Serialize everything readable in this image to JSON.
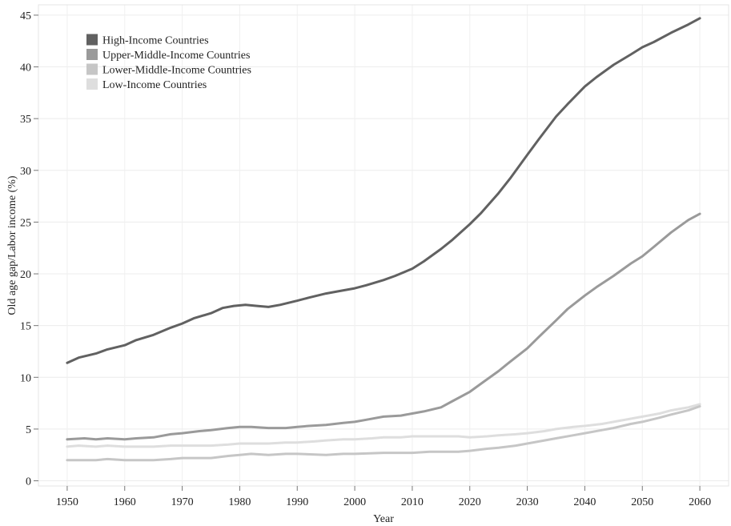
{
  "chart_data": {
    "type": "line",
    "title": "",
    "xlabel": "Year",
    "ylabel": "Old age gap/Labor income (%)",
    "xlim": [
      1945,
      2065
    ],
    "ylim": [
      -0.5,
      46
    ],
    "xticks": [
      1950,
      1960,
      1970,
      1980,
      1990,
      2000,
      2010,
      2020,
      2030,
      2040,
      2050,
      2060
    ],
    "yticks": [
      0,
      5,
      10,
      15,
      20,
      25,
      30,
      35,
      40,
      45
    ],
    "grid": true,
    "legend_position": "top-left",
    "series": [
      {
        "name": "High-Income Countries",
        "color": "#616161",
        "points": [
          [
            1950,
            11.4
          ],
          [
            1952,
            11.9
          ],
          [
            1955,
            12.3
          ],
          [
            1957,
            12.7
          ],
          [
            1960,
            13.1
          ],
          [
            1962,
            13.6
          ],
          [
            1965,
            14.1
          ],
          [
            1968,
            14.8
          ],
          [
            1970,
            15.2
          ],
          [
            1972,
            15.7
          ],
          [
            1975,
            16.2
          ],
          [
            1977,
            16.7
          ],
          [
            1979,
            16.9
          ],
          [
            1981,
            17.0
          ],
          [
            1983,
            16.9
          ],
          [
            1985,
            16.8
          ],
          [
            1987,
            17.0
          ],
          [
            1990,
            17.4
          ],
          [
            1992,
            17.7
          ],
          [
            1995,
            18.1
          ],
          [
            1997,
            18.3
          ],
          [
            2000,
            18.6
          ],
          [
            2002,
            18.9
          ],
          [
            2005,
            19.4
          ],
          [
            2007,
            19.8
          ],
          [
            2010,
            20.5
          ],
          [
            2012,
            21.2
          ],
          [
            2015,
            22.4
          ],
          [
            2017,
            23.3
          ],
          [
            2020,
            24.8
          ],
          [
            2022,
            25.9
          ],
          [
            2025,
            27.8
          ],
          [
            2027,
            29.2
          ],
          [
            2030,
            31.5
          ],
          [
            2032,
            33.0
          ],
          [
            2035,
            35.2
          ],
          [
            2037,
            36.4
          ],
          [
            2040,
            38.1
          ],
          [
            2042,
            39.0
          ],
          [
            2045,
            40.2
          ],
          [
            2048,
            41.2
          ],
          [
            2050,
            41.9
          ],
          [
            2052,
            42.4
          ],
          [
            2055,
            43.3
          ],
          [
            2058,
            44.1
          ],
          [
            2060,
            44.7
          ]
        ]
      },
      {
        "name": "Upper-Middle-Income Countries",
        "color": "#9a9a9a",
        "points": [
          [
            1950,
            4.0
          ],
          [
            1953,
            4.1
          ],
          [
            1955,
            4.0
          ],
          [
            1957,
            4.1
          ],
          [
            1960,
            4.0
          ],
          [
            1962,
            4.1
          ],
          [
            1965,
            4.2
          ],
          [
            1968,
            4.5
          ],
          [
            1970,
            4.6
          ],
          [
            1973,
            4.8
          ],
          [
            1975,
            4.9
          ],
          [
            1978,
            5.1
          ],
          [
            1980,
            5.2
          ],
          [
            1982,
            5.2
          ],
          [
            1985,
            5.1
          ],
          [
            1988,
            5.1
          ],
          [
            1990,
            5.2
          ],
          [
            1992,
            5.3
          ],
          [
            1995,
            5.4
          ],
          [
            1998,
            5.6
          ],
          [
            2000,
            5.7
          ],
          [
            2002,
            5.9
          ],
          [
            2005,
            6.2
          ],
          [
            2008,
            6.3
          ],
          [
            2010,
            6.5
          ],
          [
            2012,
            6.7
          ],
          [
            2015,
            7.1
          ],
          [
            2017,
            7.7
          ],
          [
            2020,
            8.6
          ],
          [
            2022,
            9.4
          ],
          [
            2025,
            10.6
          ],
          [
            2027,
            11.5
          ],
          [
            2030,
            12.8
          ],
          [
            2032,
            13.9
          ],
          [
            2035,
            15.5
          ],
          [
            2037,
            16.6
          ],
          [
            2040,
            17.9
          ],
          [
            2042,
            18.7
          ],
          [
            2045,
            19.8
          ],
          [
            2048,
            21.0
          ],
          [
            2050,
            21.7
          ],
          [
            2052,
            22.6
          ],
          [
            2055,
            24.0
          ],
          [
            2058,
            25.2
          ],
          [
            2060,
            25.8
          ]
        ]
      },
      {
        "name": "Lower-Middle-Income Countries",
        "color": "#c6c6c6",
        "points": [
          [
            1950,
            2.0
          ],
          [
            1955,
            2.0
          ],
          [
            1957,
            2.1
          ],
          [
            1960,
            2.0
          ],
          [
            1965,
            2.0
          ],
          [
            1968,
            2.1
          ],
          [
            1970,
            2.2
          ],
          [
            1975,
            2.2
          ],
          [
            1978,
            2.4
          ],
          [
            1980,
            2.5
          ],
          [
            1982,
            2.6
          ],
          [
            1985,
            2.5
          ],
          [
            1988,
            2.6
          ],
          [
            1990,
            2.6
          ],
          [
            1995,
            2.5
          ],
          [
            1998,
            2.6
          ],
          [
            2000,
            2.6
          ],
          [
            2005,
            2.7
          ],
          [
            2008,
            2.7
          ],
          [
            2010,
            2.7
          ],
          [
            2013,
            2.8
          ],
          [
            2015,
            2.8
          ],
          [
            2018,
            2.8
          ],
          [
            2020,
            2.9
          ],
          [
            2023,
            3.1
          ],
          [
            2025,
            3.2
          ],
          [
            2028,
            3.4
          ],
          [
            2030,
            3.6
          ],
          [
            2033,
            3.9
          ],
          [
            2035,
            4.1
          ],
          [
            2038,
            4.4
          ],
          [
            2040,
            4.6
          ],
          [
            2043,
            4.9
          ],
          [
            2045,
            5.1
          ],
          [
            2048,
            5.5
          ],
          [
            2050,
            5.7
          ],
          [
            2053,
            6.1
          ],
          [
            2055,
            6.4
          ],
          [
            2058,
            6.8
          ],
          [
            2060,
            7.2
          ]
        ]
      },
      {
        "name": "Low-Income Countries",
        "color": "#dedede",
        "points": [
          [
            1950,
            3.3
          ],
          [
            1952,
            3.4
          ],
          [
            1955,
            3.3
          ],
          [
            1957,
            3.4
          ],
          [
            1960,
            3.3
          ],
          [
            1962,
            3.3
          ],
          [
            1965,
            3.3
          ],
          [
            1968,
            3.4
          ],
          [
            1970,
            3.4
          ],
          [
            1973,
            3.4
          ],
          [
            1975,
            3.4
          ],
          [
            1978,
            3.5
          ],
          [
            1980,
            3.6
          ],
          [
            1982,
            3.6
          ],
          [
            1985,
            3.6
          ],
          [
            1988,
            3.7
          ],
          [
            1990,
            3.7
          ],
          [
            1993,
            3.8
          ],
          [
            1995,
            3.9
          ],
          [
            1998,
            4.0
          ],
          [
            2000,
            4.0
          ],
          [
            2003,
            4.1
          ],
          [
            2005,
            4.2
          ],
          [
            2008,
            4.2
          ],
          [
            2010,
            4.3
          ],
          [
            2013,
            4.3
          ],
          [
            2015,
            4.3
          ],
          [
            2018,
            4.3
          ],
          [
            2020,
            4.2
          ],
          [
            2023,
            4.3
          ],
          [
            2025,
            4.4
          ],
          [
            2028,
            4.5
          ],
          [
            2030,
            4.6
          ],
          [
            2033,
            4.8
          ],
          [
            2035,
            5.0
          ],
          [
            2038,
            5.2
          ],
          [
            2040,
            5.3
          ],
          [
            2043,
            5.5
          ],
          [
            2045,
            5.7
          ],
          [
            2048,
            6.0
          ],
          [
            2050,
            6.2
          ],
          [
            2053,
            6.5
          ],
          [
            2055,
            6.8
          ],
          [
            2058,
            7.1
          ],
          [
            2060,
            7.4
          ]
        ]
      }
    ]
  }
}
